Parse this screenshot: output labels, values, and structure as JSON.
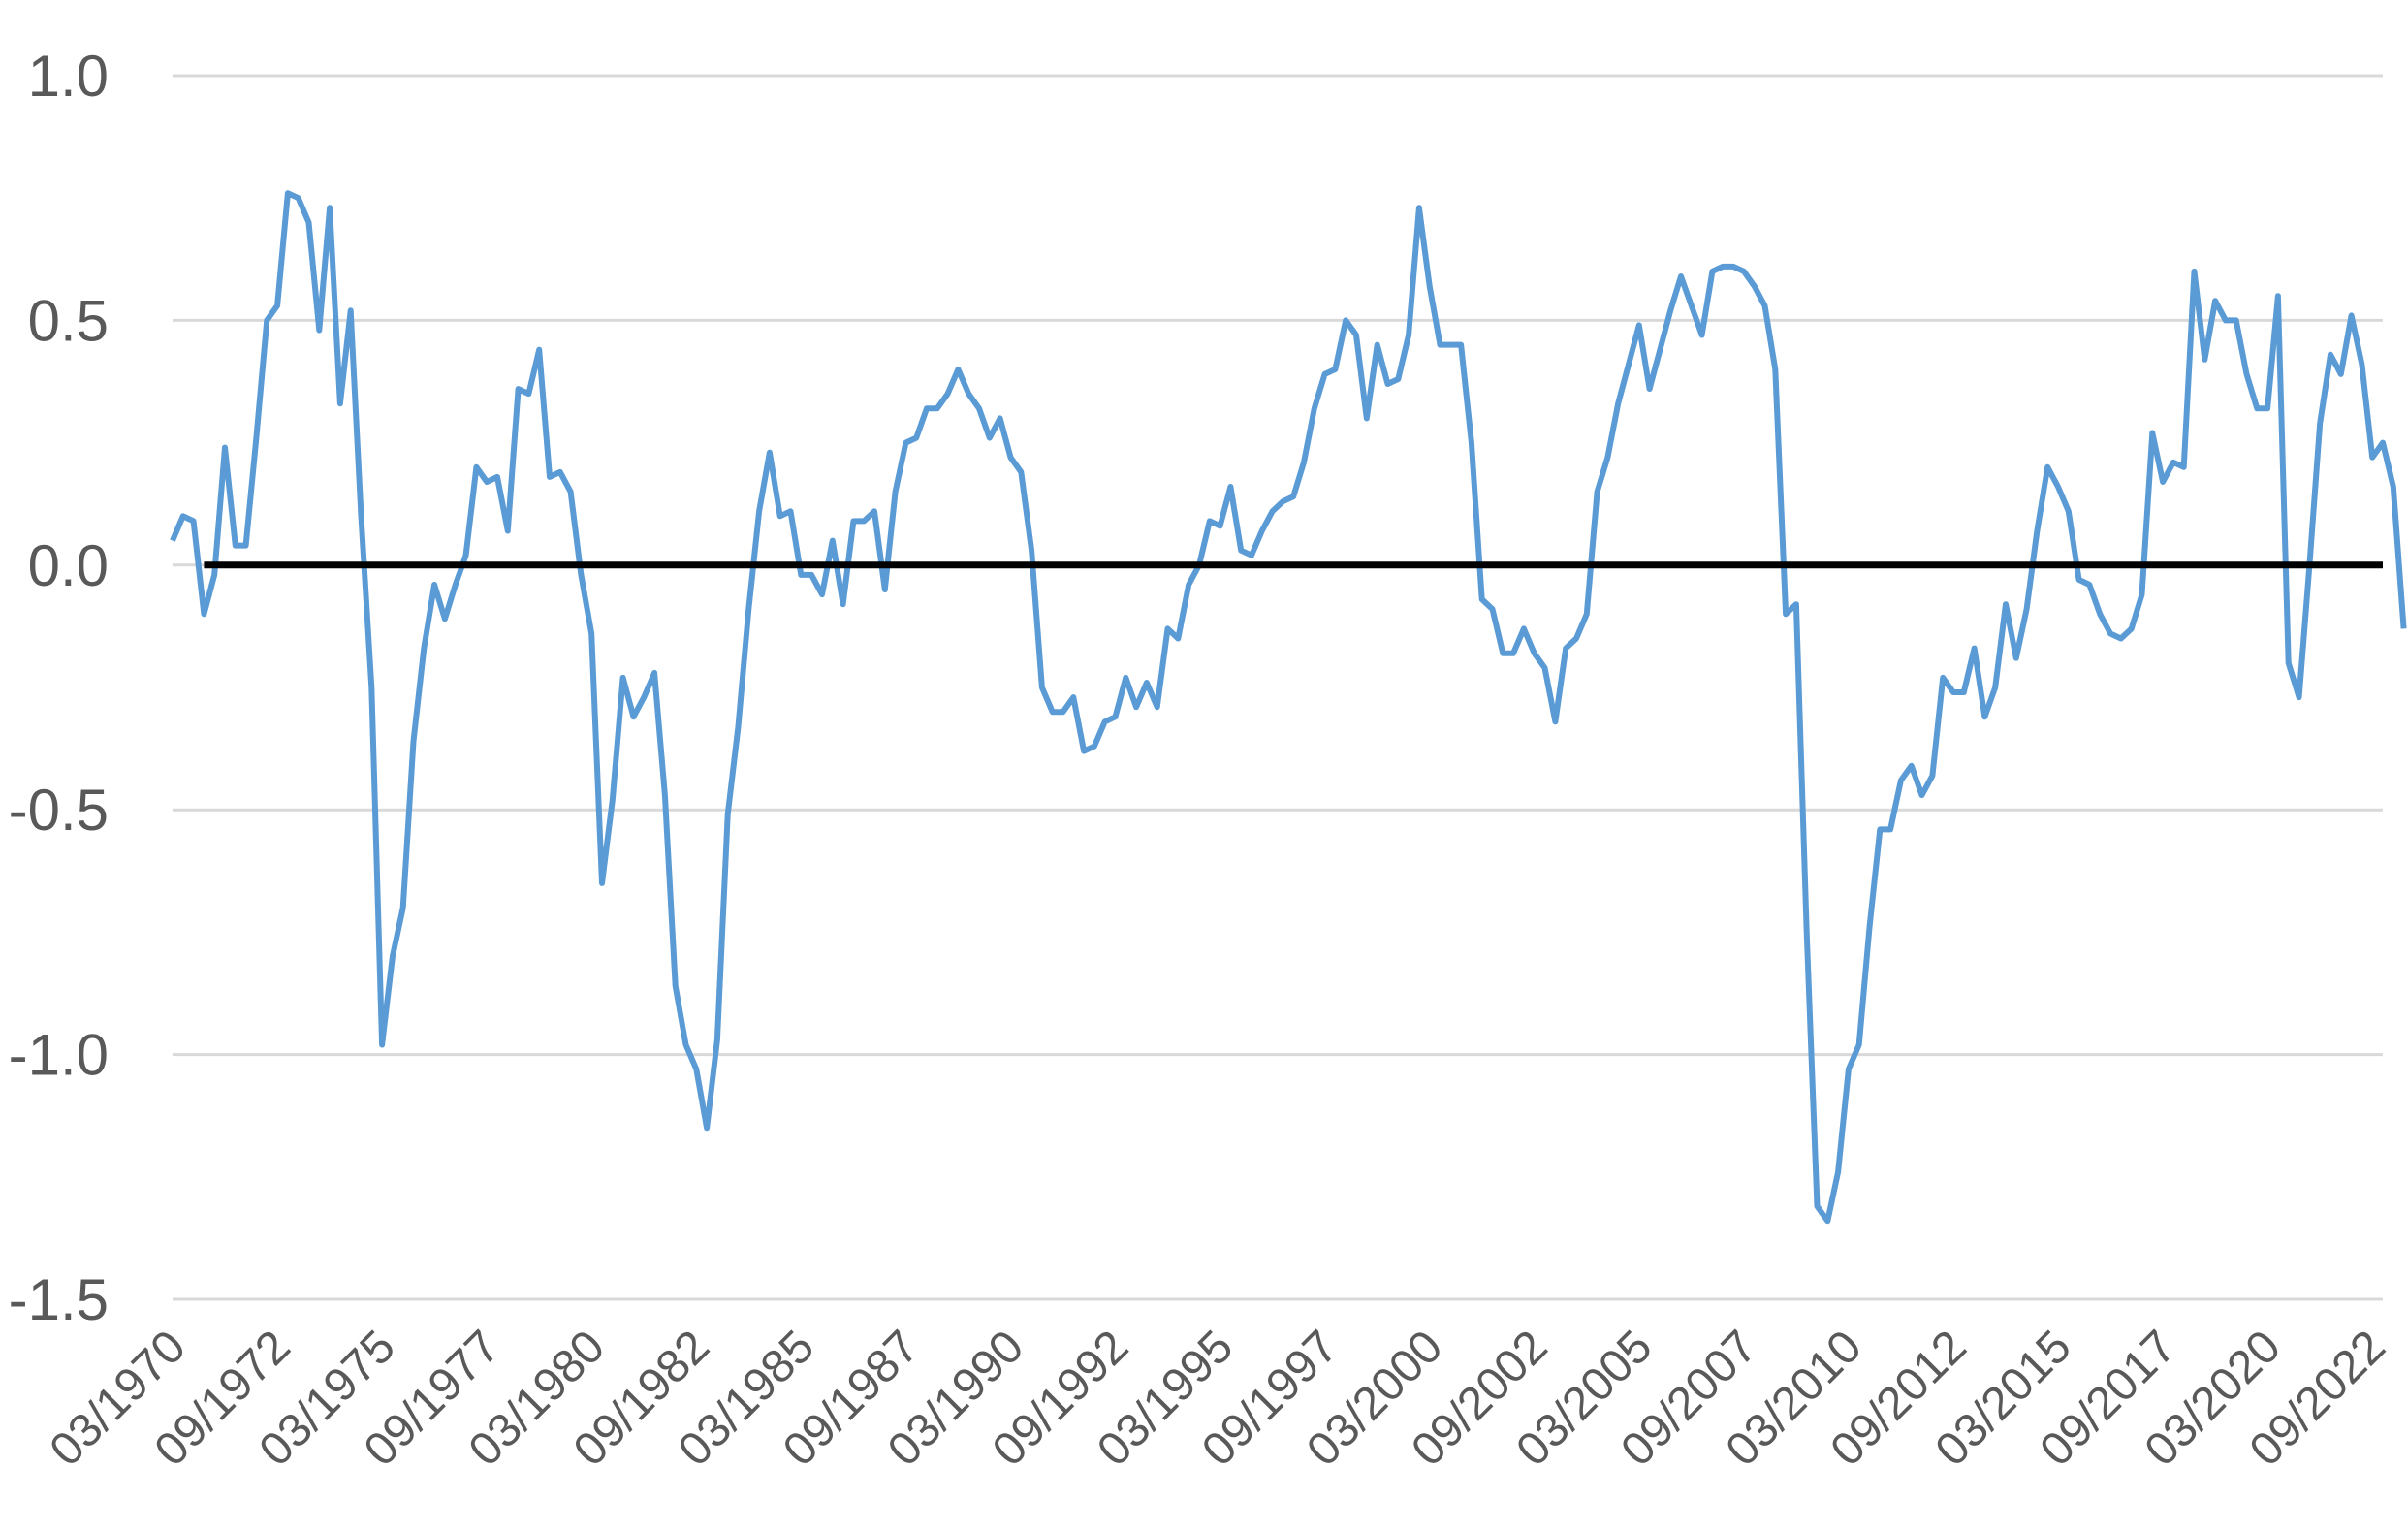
{
  "chart_data": {
    "type": "line",
    "title": "",
    "xlabel": "",
    "ylabel": "",
    "ylim": [
      -1.5,
      1.0
    ],
    "yticks": [
      "1.0",
      "0.5",
      "0.0",
      "-0.5",
      "-1.0",
      "-1.5"
    ],
    "ytick_values": [
      1.0,
      0.5,
      0.0,
      -0.5,
      -1.0,
      -1.5
    ],
    "grid": "horizontal",
    "legend": "none",
    "x_range": [
      "03/1970",
      "12/2022"
    ],
    "xticks": [
      "03/1970",
      "09/1972",
      "03/1975",
      "09/1977",
      "03/1980",
      "09/1982",
      "03/1985",
      "09/1987",
      "03/1990",
      "09/1992",
      "03/1995",
      "09/1997",
      "03/2000",
      "09/2002",
      "03/2005",
      "09/2007",
      "03/2010",
      "09/2012",
      "03/2015",
      "09/2017",
      "03/2020",
      "09/2022"
    ],
    "colors": {
      "series": "#5b9bd5",
      "zero_line": "#000000",
      "grid": "#d9d9d9",
      "text": "#595959"
    },
    "series": [
      {
        "values": [
          0.05,
          0.1,
          0.09,
          -0.1,
          -0.02,
          0.24,
          0.04,
          0.04,
          0.26,
          0.5,
          0.53,
          0.76,
          0.75,
          0.7,
          0.48,
          0.73,
          0.33,
          0.52,
          0.1,
          -0.25,
          -0.98,
          -0.8,
          -0.7,
          -0.36,
          -0.17,
          -0.04,
          -0.11,
          -0.04,
          0.02,
          0.2,
          0.17,
          0.18,
          0.07,
          0.36,
          0.35,
          0.44,
          0.18,
          0.19,
          0.15,
          -0.02,
          -0.14,
          -0.65,
          -0.48,
          -0.23,
          -0.31,
          -0.27,
          -0.22,
          -0.47,
          -0.86,
          -0.98,
          -1.03,
          -1.15,
          -0.97,
          -0.51,
          -0.33,
          -0.09,
          0.11,
          0.23,
          0.1,
          0.11,
          -0.02,
          -0.02,
          -0.06,
          0.05,
          -0.08,
          0.09,
          0.09,
          0.11,
          -0.05,
          0.15,
          0.25,
          0.26,
          0.32,
          0.32,
          0.35,
          0.4,
          0.35,
          0.32,
          0.26,
          0.3,
          0.22,
          0.19,
          0.03,
          -0.25,
          -0.3,
          -0.3,
          -0.27,
          -0.38,
          -0.37,
          -0.32,
          -0.31,
          -0.23,
          -0.29,
          -0.24,
          -0.29,
          -0.13,
          -0.15,
          -0.04,
          0.0,
          0.09,
          0.08,
          0.16,
          0.03,
          0.02,
          0.07,
          0.11,
          0.13,
          0.14,
          0.21,
          0.32,
          0.39,
          0.4,
          0.5,
          0.47,
          0.3,
          0.45,
          0.37,
          0.38,
          0.47,
          0.73,
          0.57,
          0.45,
          0.45,
          0.45,
          0.25,
          -0.07,
          -0.09,
          -0.18,
          -0.18,
          -0.13,
          -0.18,
          -0.21,
          -0.32,
          -0.17,
          -0.15,
          -0.1,
          0.15,
          0.22,
          0.33,
          0.41,
          0.49,
          0.36,
          0.44,
          0.52,
          0.59,
          0.53,
          0.47,
          0.6,
          0.61,
          0.61,
          0.6,
          0.57,
          0.53,
          0.4,
          -0.1,
          -0.08,
          -0.75,
          -1.31,
          -1.34,
          -1.24,
          -1.03,
          -0.98,
          -0.74,
          -0.54,
          -0.54,
          -0.44,
          -0.41,
          -0.47,
          -0.43,
          -0.23,
          -0.26,
          -0.26,
          -0.17,
          -0.31,
          -0.25,
          -0.08,
          -0.19,
          -0.09,
          0.07,
          0.2,
          0.16,
          0.11,
          -0.03,
          -0.04,
          -0.1,
          -0.14,
          -0.15,
          -0.13,
          -0.06,
          0.27,
          0.17,
          0.21,
          0.2,
          0.6,
          0.42,
          0.54,
          0.5,
          0.5,
          0.39,
          0.32,
          0.32,
          0.55,
          -0.2,
          -0.27,
          0.0,
          0.29,
          0.43,
          0.39,
          0.51,
          0.41,
          0.22,
          0.25,
          0.16,
          -0.13
        ]
      }
    ],
    "reference_line": {
      "y": 0.0,
      "from_x": "12/1970",
      "to_x": "12/2022"
    }
  }
}
